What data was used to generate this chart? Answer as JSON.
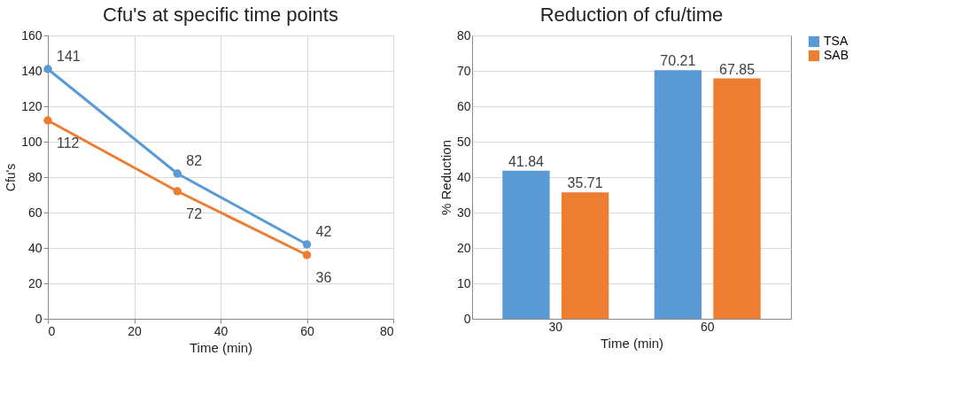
{
  "chart_data": [
    {
      "type": "line",
      "title": "Cfu's at specific time points",
      "xlabel": "Time (min)",
      "ylabel": "Cfu's",
      "x": [
        0,
        30,
        60
      ],
      "xlim": [
        0,
        80
      ],
      "xticks": [
        0,
        20,
        40,
        60,
        80
      ],
      "ylim": [
        0,
        160
      ],
      "yticks": [
        0,
        20,
        40,
        60,
        80,
        100,
        120,
        140,
        160
      ],
      "grid": true,
      "marker": "circle",
      "data_labels": true,
      "series": [
        {
          "color": "#5b9bd5",
          "values": [
            141,
            82,
            42
          ]
        },
        {
          "color": "#ed7d31",
          "values": [
            112,
            72,
            36
          ]
        }
      ]
    },
    {
      "type": "bar",
      "title": "Reduction of cfu/time",
      "xlabel": "Time (min)",
      "ylabel": "% Reduction",
      "categories": [
        "30",
        "60"
      ],
      "ylim": [
        0,
        80
      ],
      "yticks": [
        0,
        10,
        20,
        30,
        40,
        50,
        60,
        70,
        80
      ],
      "grid": "y",
      "legend": "right",
      "data_labels": true,
      "series": [
        {
          "name": "TSA",
          "color": "#5b9bd5",
          "values": [
            41.84,
            70.21
          ]
        },
        {
          "name": "SAB",
          "color": "#ed7d31",
          "values": [
            35.71,
            67.85
          ]
        }
      ]
    }
  ]
}
